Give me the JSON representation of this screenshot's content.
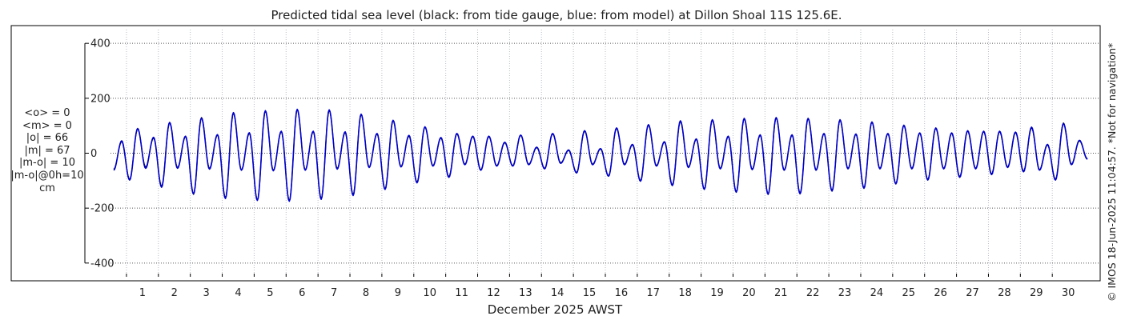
{
  "chart_data": {
    "type": "line",
    "title": "Predicted tidal sea level (black: from tide gauge, blue: from model) at Dillon Shoal 11S 125.6E.",
    "xlabel": "December 2025 AWST",
    "ylabel": "",
    "ylim": [
      -450,
      450
    ],
    "xlim": [
      0.0,
      31.0
    ],
    "yticks": [
      -400,
      -200,
      0,
      200,
      400
    ],
    "ytick_labels": [
      "-400",
      "-200",
      "0",
      "200",
      "400"
    ],
    "xticks": [
      1,
      2,
      3,
      4,
      5,
      6,
      7,
      8,
      9,
      10,
      11,
      12,
      13,
      14,
      15,
      16,
      17,
      18,
      19,
      20,
      21,
      22,
      23,
      24,
      25,
      26,
      27,
      28,
      29,
      30
    ],
    "xtick_labels": [
      "1",
      "2",
      "3",
      "4",
      "5",
      "6",
      "7",
      "8",
      "9",
      "10",
      "11",
      "12",
      "13",
      "14",
      "15",
      "16",
      "17",
      "18",
      "19",
      "20",
      "21",
      "22",
      "23",
      "24",
      "25",
      "26",
      "27",
      "28",
      "29",
      "30"
    ],
    "grid": true,
    "series": [
      {
        "name": "tide gauge",
        "color": "#000000",
        "highs": [
          [
            0.35,
            42
          ],
          [
            0.85,
            88
          ],
          [
            1.35,
            55
          ],
          [
            1.85,
            110
          ],
          [
            2.35,
            60
          ],
          [
            2.85,
            130
          ],
          [
            3.35,
            66
          ],
          [
            3.85,
            145
          ],
          [
            4.35,
            72
          ],
          [
            4.85,
            153
          ],
          [
            5.35,
            78
          ],
          [
            5.85,
            158
          ],
          [
            6.35,
            78
          ],
          [
            6.85,
            155
          ],
          [
            7.35,
            75
          ],
          [
            7.85,
            140
          ],
          [
            8.35,
            70
          ],
          [
            8.85,
            118
          ],
          [
            9.35,
            62
          ],
          [
            9.85,
            95
          ],
          [
            10.35,
            55
          ],
          [
            10.85,
            70
          ],
          [
            11.35,
            60
          ],
          [
            11.85,
            60
          ],
          [
            12.35,
            38
          ],
          [
            12.85,
            65
          ],
          [
            13.35,
            20
          ],
          [
            13.85,
            70
          ],
          [
            14.35,
            10
          ],
          [
            14.85,
            80
          ],
          [
            15.35,
            15
          ],
          [
            15.85,
            90
          ],
          [
            16.35,
            30
          ],
          [
            16.85,
            102
          ],
          [
            17.35,
            40
          ],
          [
            17.85,
            115
          ],
          [
            18.35,
            50
          ],
          [
            18.85,
            120
          ],
          [
            19.35,
            60
          ],
          [
            19.85,
            125
          ],
          [
            20.35,
            65
          ],
          [
            20.85,
            128
          ],
          [
            21.35,
            65
          ],
          [
            21.85,
            125
          ],
          [
            22.35,
            70
          ],
          [
            22.85,
            120
          ],
          [
            23.35,
            68
          ],
          [
            23.85,
            112
          ],
          [
            24.35,
            70
          ],
          [
            24.85,
            100
          ],
          [
            25.35,
            72
          ],
          [
            25.85,
            90
          ],
          [
            26.35,
            72
          ],
          [
            26.85,
            80
          ],
          [
            27.35,
            78
          ],
          [
            27.85,
            78
          ],
          [
            28.35,
            75
          ],
          [
            28.85,
            92
          ],
          [
            29.35,
            30
          ],
          [
            29.85,
            110
          ],
          [
            30.35,
            45
          ]
        ],
        "lows": [
          [
            0.1,
            -58
          ],
          [
            0.6,
            -95
          ],
          [
            1.1,
            -50
          ],
          [
            1.6,
            -120
          ],
          [
            2.1,
            -52
          ],
          [
            2.6,
            -150
          ],
          [
            3.1,
            -55
          ],
          [
            3.6,
            -162
          ],
          [
            4.1,
            -60
          ],
          [
            4.6,
            -170
          ],
          [
            5.1,
            -62
          ],
          [
            5.6,
            -172
          ],
          [
            6.1,
            -60
          ],
          [
            6.6,
            -165
          ],
          [
            7.1,
            -55
          ],
          [
            7.6,
            -150
          ],
          [
            8.1,
            -50
          ],
          [
            8.6,
            -130
          ],
          [
            9.1,
            -48
          ],
          [
            9.6,
            -105
          ],
          [
            10.1,
            -45
          ],
          [
            10.6,
            -85
          ],
          [
            11.1,
            -40
          ],
          [
            11.6,
            -60
          ],
          [
            12.1,
            -45
          ],
          [
            12.6,
            -45
          ],
          [
            13.1,
            -40
          ],
          [
            13.6,
            -55
          ],
          [
            14.1,
            -35
          ],
          [
            14.6,
            -70
          ],
          [
            15.1,
            -40
          ],
          [
            15.6,
            -82
          ],
          [
            16.1,
            -40
          ],
          [
            16.6,
            -100
          ],
          [
            17.1,
            -45
          ],
          [
            17.6,
            -115
          ],
          [
            18.1,
            -50
          ],
          [
            18.6,
            -130
          ],
          [
            19.1,
            -55
          ],
          [
            19.6,
            -140
          ],
          [
            20.1,
            -58
          ],
          [
            20.6,
            -148
          ],
          [
            21.1,
            -60
          ],
          [
            21.6,
            -145
          ],
          [
            22.1,
            -60
          ],
          [
            22.6,
            -135
          ],
          [
            23.1,
            -55
          ],
          [
            23.6,
            -125
          ],
          [
            24.1,
            -55
          ],
          [
            24.6,
            -110
          ],
          [
            25.1,
            -55
          ],
          [
            25.6,
            -95
          ],
          [
            26.1,
            -55
          ],
          [
            26.6,
            -85
          ],
          [
            27.1,
            -55
          ],
          [
            27.6,
            -75
          ],
          [
            28.1,
            -50
          ],
          [
            28.6,
            -65
          ],
          [
            29.1,
            -60
          ],
          [
            29.6,
            -95
          ],
          [
            30.1,
            -40
          ],
          [
            30.6,
            -20
          ]
        ]
      },
      {
        "name": "model",
        "color": "#0000cc",
        "highs": [
          [
            0.35,
            45
          ],
          [
            0.85,
            90
          ],
          [
            1.35,
            58
          ],
          [
            1.85,
            112
          ],
          [
            2.35,
            62
          ],
          [
            2.85,
            128
          ],
          [
            3.35,
            68
          ],
          [
            3.85,
            148
          ],
          [
            4.35,
            75
          ],
          [
            4.85,
            155
          ],
          [
            5.35,
            80
          ],
          [
            5.85,
            160
          ],
          [
            6.35,
            80
          ],
          [
            6.85,
            158
          ],
          [
            7.35,
            78
          ],
          [
            7.85,
            142
          ],
          [
            8.35,
            72
          ],
          [
            8.85,
            120
          ],
          [
            9.35,
            65
          ],
          [
            9.85,
            96
          ],
          [
            10.35,
            57
          ],
          [
            10.85,
            72
          ],
          [
            11.35,
            62
          ],
          [
            11.85,
            62
          ],
          [
            12.35,
            40
          ],
          [
            12.85,
            66
          ],
          [
            13.35,
            22
          ],
          [
            13.85,
            72
          ],
          [
            14.35,
            12
          ],
          [
            14.85,
            82
          ],
          [
            15.35,
            17
          ],
          [
            15.85,
            92
          ],
          [
            16.35,
            32
          ],
          [
            16.85,
            104
          ],
          [
            17.35,
            42
          ],
          [
            17.85,
            118
          ],
          [
            18.35,
            52
          ],
          [
            18.85,
            122
          ],
          [
            19.35,
            62
          ],
          [
            19.85,
            127
          ],
          [
            20.35,
            67
          ],
          [
            20.85,
            130
          ],
          [
            21.35,
            67
          ],
          [
            21.85,
            127
          ],
          [
            22.35,
            72
          ],
          [
            22.85,
            122
          ],
          [
            23.35,
            70
          ],
          [
            23.85,
            114
          ],
          [
            24.35,
            72
          ],
          [
            24.85,
            102
          ],
          [
            25.35,
            74
          ],
          [
            25.85,
            92
          ],
          [
            26.35,
            74
          ],
          [
            26.85,
            82
          ],
          [
            27.35,
            80
          ],
          [
            27.85,
            80
          ],
          [
            28.35,
            77
          ],
          [
            28.85,
            95
          ],
          [
            29.35,
            32
          ],
          [
            29.85,
            108
          ],
          [
            30.35,
            47
          ]
        ],
        "lows": [
          [
            0.1,
            -62
          ],
          [
            0.6,
            -98
          ],
          [
            1.1,
            -55
          ],
          [
            1.6,
            -124
          ],
          [
            2.1,
            -55
          ],
          [
            2.6,
            -148
          ],
          [
            3.1,
            -58
          ],
          [
            3.6,
            -165
          ],
          [
            4.1,
            -62
          ],
          [
            4.6,
            -172
          ],
          [
            5.1,
            -64
          ],
          [
            5.6,
            -175
          ],
          [
            6.1,
            -62
          ],
          [
            6.6,
            -168
          ],
          [
            7.1,
            -58
          ],
          [
            7.6,
            -154
          ],
          [
            8.1,
            -52
          ],
          [
            8.6,
            -132
          ],
          [
            9.1,
            -50
          ],
          [
            9.6,
            -108
          ],
          [
            10.1,
            -47
          ],
          [
            10.6,
            -88
          ],
          [
            11.1,
            -42
          ],
          [
            11.6,
            -62
          ],
          [
            12.1,
            -47
          ],
          [
            12.6,
            -47
          ],
          [
            13.1,
            -42
          ],
          [
            13.6,
            -57
          ],
          [
            14.1,
            -37
          ],
          [
            14.6,
            -72
          ],
          [
            15.1,
            -42
          ],
          [
            15.6,
            -84
          ],
          [
            16.1,
            -42
          ],
          [
            16.6,
            -102
          ],
          [
            17.1,
            -47
          ],
          [
            17.6,
            -118
          ],
          [
            18.1,
            -52
          ],
          [
            18.6,
            -132
          ],
          [
            19.1,
            -57
          ],
          [
            19.6,
            -142
          ],
          [
            20.1,
            -60
          ],
          [
            20.6,
            -150
          ],
          [
            21.1,
            -62
          ],
          [
            21.6,
            -148
          ],
          [
            22.1,
            -62
          ],
          [
            22.6,
            -138
          ],
          [
            23.1,
            -57
          ],
          [
            23.6,
            -128
          ],
          [
            24.1,
            -57
          ],
          [
            24.6,
            -112
          ],
          [
            25.1,
            -57
          ],
          [
            25.6,
            -98
          ],
          [
            26.1,
            -57
          ],
          [
            26.6,
            -88
          ],
          [
            27.1,
            -57
          ],
          [
            27.6,
            -78
          ],
          [
            28.1,
            -52
          ],
          [
            28.6,
            -68
          ],
          [
            29.1,
            -62
          ],
          [
            29.6,
            -98
          ],
          [
            30.1,
            -42
          ],
          [
            30.6,
            -22
          ]
        ]
      }
    ]
  },
  "stats": {
    "mean_obs": "<o> = 0",
    "mean_model": "<m> = 0",
    "abs_obs": "|o| = 66",
    "abs_model": "|m| = 67",
    "abs_diff": "|m-o| = 10",
    "abs_diff_0h": "|m-o|@0h=10",
    "unit": "cm"
  },
  "watermark": "© IMOS 18-Jun-2025 11:04:57.  *Not for navigation*"
}
